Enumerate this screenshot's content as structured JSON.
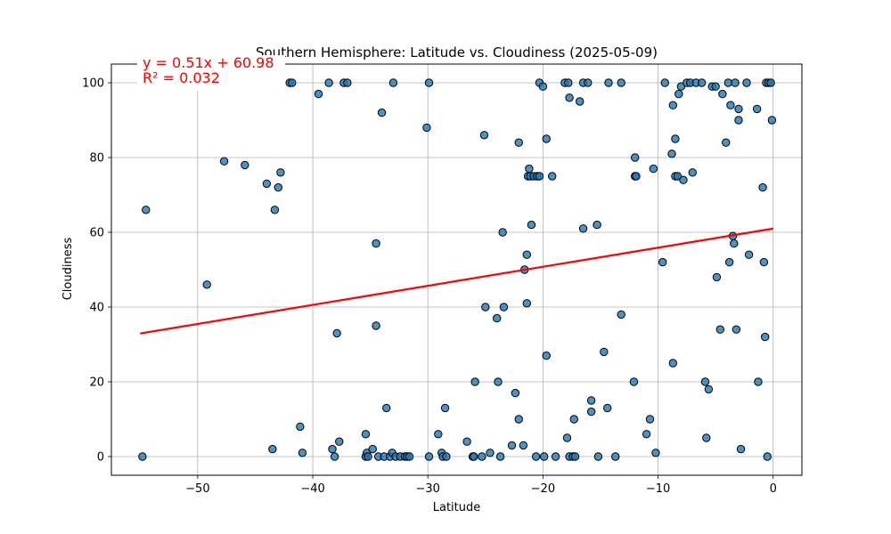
{
  "chart_data": {
    "type": "scatter",
    "title": "Southern Hemisphere: Latitude vs. Cloudiness (2025-05-09)",
    "xlabel": "Latitude",
    "ylabel": "Cloudiness",
    "xlim": [
      -57.5,
      2.5
    ],
    "ylim": [
      -5,
      105
    ],
    "x_ticks": [
      -50,
      -40,
      -30,
      -20,
      -10,
      0
    ],
    "y_ticks": [
      0,
      20,
      40,
      60,
      80,
      100
    ],
    "grid": true,
    "point_color": "#1f77b4",
    "line_color": "#ff0000",
    "annotation_color": "#ff0000",
    "regression": {
      "slope": 0.51,
      "intercept": 60.98,
      "x_range": [
        -55,
        0
      ],
      "equation_label": "y = 0.51x + 60.98",
      "r2_label": "R² = 0.032"
    },
    "points": [
      [
        -54.8,
        0
      ],
      [
        -54.5,
        66
      ],
      [
        -49.2,
        46
      ],
      [
        -47.7,
        79
      ],
      [
        -45.9,
        78
      ],
      [
        -44.0,
        73
      ],
      [
        -43.5,
        2
      ],
      [
        -43.3,
        66
      ],
      [
        -43.0,
        72
      ],
      [
        -42.8,
        76
      ],
      [
        -42.0,
        100
      ],
      [
        -41.8,
        100
      ],
      [
        -41.1,
        8
      ],
      [
        -40.9,
        1
      ],
      [
        -39.5,
        97
      ],
      [
        -38.6,
        100
      ],
      [
        -38.3,
        2
      ],
      [
        -38.1,
        0
      ],
      [
        -37.9,
        33
      ],
      [
        -37.7,
        4
      ],
      [
        -37.3,
        100
      ],
      [
        -37.0,
        100
      ],
      [
        -35.4,
        6
      ],
      [
        -35.4,
        0
      ],
      [
        -35.3,
        1
      ],
      [
        -35.2,
        0
      ],
      [
        -34.8,
        2
      ],
      [
        -34.5,
        57
      ],
      [
        -34.5,
        35
      ],
      [
        -34.3,
        0
      ],
      [
        -34.0,
        92
      ],
      [
        -33.8,
        0
      ],
      [
        -33.6,
        13
      ],
      [
        -33.3,
        0
      ],
      [
        -33.1,
        1
      ],
      [
        -33.0,
        100
      ],
      [
        -32.8,
        0
      ],
      [
        -32.4,
        0
      ],
      [
        -32.0,
        0
      ],
      [
        -31.8,
        0
      ],
      [
        -31.6,
        0
      ],
      [
        -30.1,
        88
      ],
      [
        -29.9,
        100
      ],
      [
        -29.9,
        0
      ],
      [
        -29.1,
        6
      ],
      [
        -28.8,
        1
      ],
      [
        -28.7,
        0
      ],
      [
        -28.5,
        13
      ],
      [
        -28.4,
        0
      ],
      [
        -26.6,
        4
      ],
      [
        -26.1,
        0
      ],
      [
        -25.9,
        20
      ],
      [
        -26.0,
        0
      ],
      [
        -25.3,
        0
      ],
      [
        -25.1,
        86
      ],
      [
        -25.0,
        40
      ],
      [
        -24.6,
        1
      ],
      [
        -24.0,
        37
      ],
      [
        -23.9,
        20
      ],
      [
        -23.7,
        0
      ],
      [
        -23.5,
        60
      ],
      [
        -23.4,
        40
      ],
      [
        -22.7,
        3
      ],
      [
        -22.4,
        17
      ],
      [
        -22.1,
        84
      ],
      [
        -22.1,
        10
      ],
      [
        -21.7,
        3
      ],
      [
        -21.6,
        50
      ],
      [
        -21.4,
        54
      ],
      [
        -21.4,
        41
      ],
      [
        -21.3,
        75
      ],
      [
        -21.2,
        77
      ],
      [
        -21.1,
        75
      ],
      [
        -21.0,
        62
      ],
      [
        -20.8,
        75
      ],
      [
        -20.6,
        0
      ],
      [
        -20.5,
        75
      ],
      [
        -20.3,
        75
      ],
      [
        -20.3,
        100
      ],
      [
        -20.0,
        99
      ],
      [
        -19.9,
        0
      ],
      [
        -19.7,
        85
      ],
      [
        -19.7,
        27
      ],
      [
        -19.2,
        75
      ],
      [
        -18.9,
        0
      ],
      [
        -18.1,
        100
      ],
      [
        -17.9,
        5
      ],
      [
        -17.8,
        100
      ],
      [
        -17.7,
        96
      ],
      [
        -17.7,
        0
      ],
      [
        -17.4,
        0
      ],
      [
        -17.3,
        10
      ],
      [
        -17.2,
        0
      ],
      [
        -16.8,
        95
      ],
      [
        -16.5,
        61
      ],
      [
        -16.5,
        100
      ],
      [
        -16.1,
        100
      ],
      [
        -15.8,
        15
      ],
      [
        -15.8,
        12
      ],
      [
        -15.3,
        62
      ],
      [
        -15.2,
        0
      ],
      [
        -14.7,
        28
      ],
      [
        -14.4,
        13
      ],
      [
        -14.3,
        100
      ],
      [
        -13.7,
        0
      ],
      [
        -13.2,
        100
      ],
      [
        -13.2,
        38
      ],
      [
        -12.1,
        20
      ],
      [
        -12.0,
        80
      ],
      [
        -12.0,
        75
      ],
      [
        -11.9,
        75
      ],
      [
        -11.0,
        6
      ],
      [
        -10.7,
        10
      ],
      [
        -10.4,
        77
      ],
      [
        -10.2,
        1
      ],
      [
        -9.6,
        52
      ],
      [
        -9.4,
        100
      ],
      [
        -8.8,
        81
      ],
      [
        -8.7,
        94
      ],
      [
        -8.7,
        25
      ],
      [
        -8.5,
        85
      ],
      [
        -8.5,
        75
      ],
      [
        -8.3,
        75
      ],
      [
        -8.2,
        97
      ],
      [
        -8.0,
        99
      ],
      [
        -7.8,
        74
      ],
      [
        -7.5,
        100
      ],
      [
        -7.2,
        100
      ],
      [
        -7.0,
        76
      ],
      [
        -6.7,
        100
      ],
      [
        -6.2,
        100
      ],
      [
        -5.9,
        20
      ],
      [
        -5.8,
        5
      ],
      [
        -5.6,
        18
      ],
      [
        -5.3,
        99
      ],
      [
        -5.0,
        99
      ],
      [
        -4.9,
        48
      ],
      [
        -4.6,
        34
      ],
      [
        -4.4,
        97
      ],
      [
        -4.1,
        84
      ],
      [
        -3.9,
        100
      ],
      [
        -3.8,
        52
      ],
      [
        -3.7,
        94
      ],
      [
        -3.5,
        59
      ],
      [
        -3.4,
        57
      ],
      [
        -3.3,
        100
      ],
      [
        -3.2,
        34
      ],
      [
        -3.0,
        93
      ],
      [
        -3.0,
        90
      ],
      [
        -2.8,
        2
      ],
      [
        -2.3,
        100
      ],
      [
        -2.1,
        54
      ],
      [
        -1.4,
        93
      ],
      [
        -1.3,
        20
      ],
      [
        -0.9,
        72
      ],
      [
        -0.8,
        52
      ],
      [
        -0.7,
        32
      ],
      [
        -0.6,
        100
      ],
      [
        -0.5,
        0
      ],
      [
        -0.4,
        100
      ],
      [
        -0.2,
        100
      ],
      [
        -0.1,
        90
      ]
    ]
  }
}
